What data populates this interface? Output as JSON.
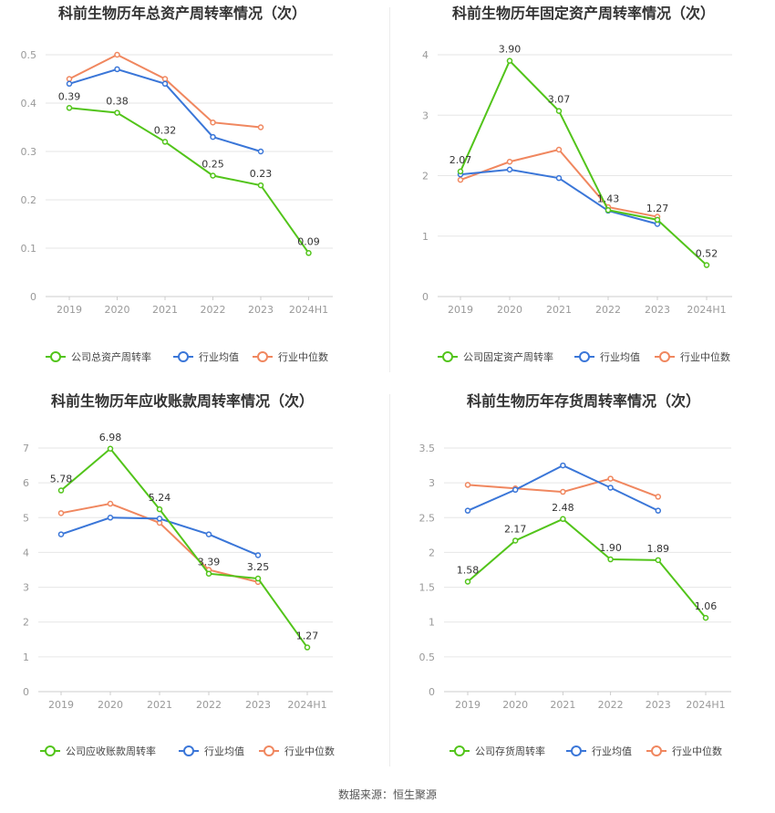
{
  "colors": {
    "company": "#52c41a",
    "avg": "#3a76d8",
    "median": "#f0875f"
  },
  "source_text": "数据来源：恒生聚源",
  "chart_data": [
    {
      "type": "line",
      "title": "科前生物历年总资产周转率情况（次）",
      "categories": [
        "2019",
        "2020",
        "2021",
        "2022",
        "2023",
        "2024H1"
      ],
      "y_ticks": [
        "0",
        "0.1",
        "0.2",
        "0.3",
        "0.4",
        "0.5"
      ],
      "ylim": [
        0,
        0.5
      ],
      "series": [
        {
          "name": "公司总资产周转率",
          "values": [
            0.39,
            0.38,
            0.32,
            0.25,
            0.23,
            0.09
          ],
          "labels": [
            "0.39",
            "0.38",
            "0.32",
            "0.25",
            "0.23",
            "0.09"
          ]
        },
        {
          "name": "行业均值",
          "values": [
            0.44,
            0.47,
            0.44,
            0.33,
            0.3,
            null
          ]
        },
        {
          "name": "行业中位数",
          "values": [
            0.45,
            0.5,
            0.45,
            0.36,
            0.35,
            null
          ]
        }
      ],
      "legend": "bottom"
    },
    {
      "type": "line",
      "title": "科前生物历年固定资产周转率情况（次）",
      "categories": [
        "2019",
        "2020",
        "2021",
        "2022",
        "2023",
        "2024H1"
      ],
      "y_ticks": [
        "0",
        "1",
        "2",
        "3",
        "4"
      ],
      "ylim": [
        0,
        4
      ],
      "series": [
        {
          "name": "公司固定资产周转率",
          "values": [
            2.07,
            3.9,
            3.07,
            1.43,
            1.27,
            0.52
          ],
          "labels": [
            "2.07",
            "3.90",
            "3.07",
            "1.43",
            "1.27",
            "0.52"
          ]
        },
        {
          "name": "行业均值",
          "values": [
            2.02,
            2.1,
            1.96,
            1.42,
            1.2,
            null
          ]
        },
        {
          "name": "行业中位数",
          "values": [
            1.93,
            2.23,
            2.43,
            1.48,
            1.32,
            null
          ]
        }
      ],
      "legend": "bottom"
    },
    {
      "type": "line",
      "title": "科前生物历年应收账款周转率情况（次）",
      "categories": [
        "2019",
        "2020",
        "2021",
        "2022",
        "2023",
        "2024H1"
      ],
      "y_ticks": [
        "0",
        "1",
        "2",
        "3",
        "4",
        "5",
        "6",
        "7"
      ],
      "ylim": [
        0,
        7
      ],
      "series": [
        {
          "name": "公司应收账款周转率",
          "values": [
            5.78,
            6.98,
            5.24,
            3.39,
            3.25,
            1.27
          ],
          "labels": [
            "5.78",
            "6.98",
            "5.24",
            "3.39",
            "3.25",
            "1.27"
          ]
        },
        {
          "name": "行业均值",
          "values": [
            4.52,
            5.0,
            4.97,
            4.52,
            3.92,
            null
          ]
        },
        {
          "name": "行业中位数",
          "values": [
            5.13,
            5.4,
            4.85,
            3.5,
            3.15,
            null
          ]
        }
      ],
      "legend": "bottom"
    },
    {
      "type": "line",
      "title": "科前生物历年存货周转率情况（次）",
      "categories": [
        "2019",
        "2020",
        "2021",
        "2022",
        "2023",
        "2024H1"
      ],
      "y_ticks": [
        "0",
        "0.5",
        "1",
        "1.5",
        "2",
        "2.5",
        "3",
        "3.5"
      ],
      "ylim": [
        0,
        3.5
      ],
      "series": [
        {
          "name": "公司存货周转率",
          "values": [
            1.58,
            2.17,
            2.48,
            1.9,
            1.89,
            1.06
          ],
          "labels": [
            "1.58",
            "2.17",
            "2.48",
            "1.90",
            "1.89",
            "1.06"
          ]
        },
        {
          "name": "行业均值",
          "values": [
            2.6,
            2.9,
            3.25,
            2.93,
            2.6,
            null
          ]
        },
        {
          "name": "行业中位数",
          "values": [
            2.97,
            2.92,
            2.87,
            3.06,
            2.8,
            null
          ]
        }
      ],
      "legend": "bottom"
    }
  ]
}
